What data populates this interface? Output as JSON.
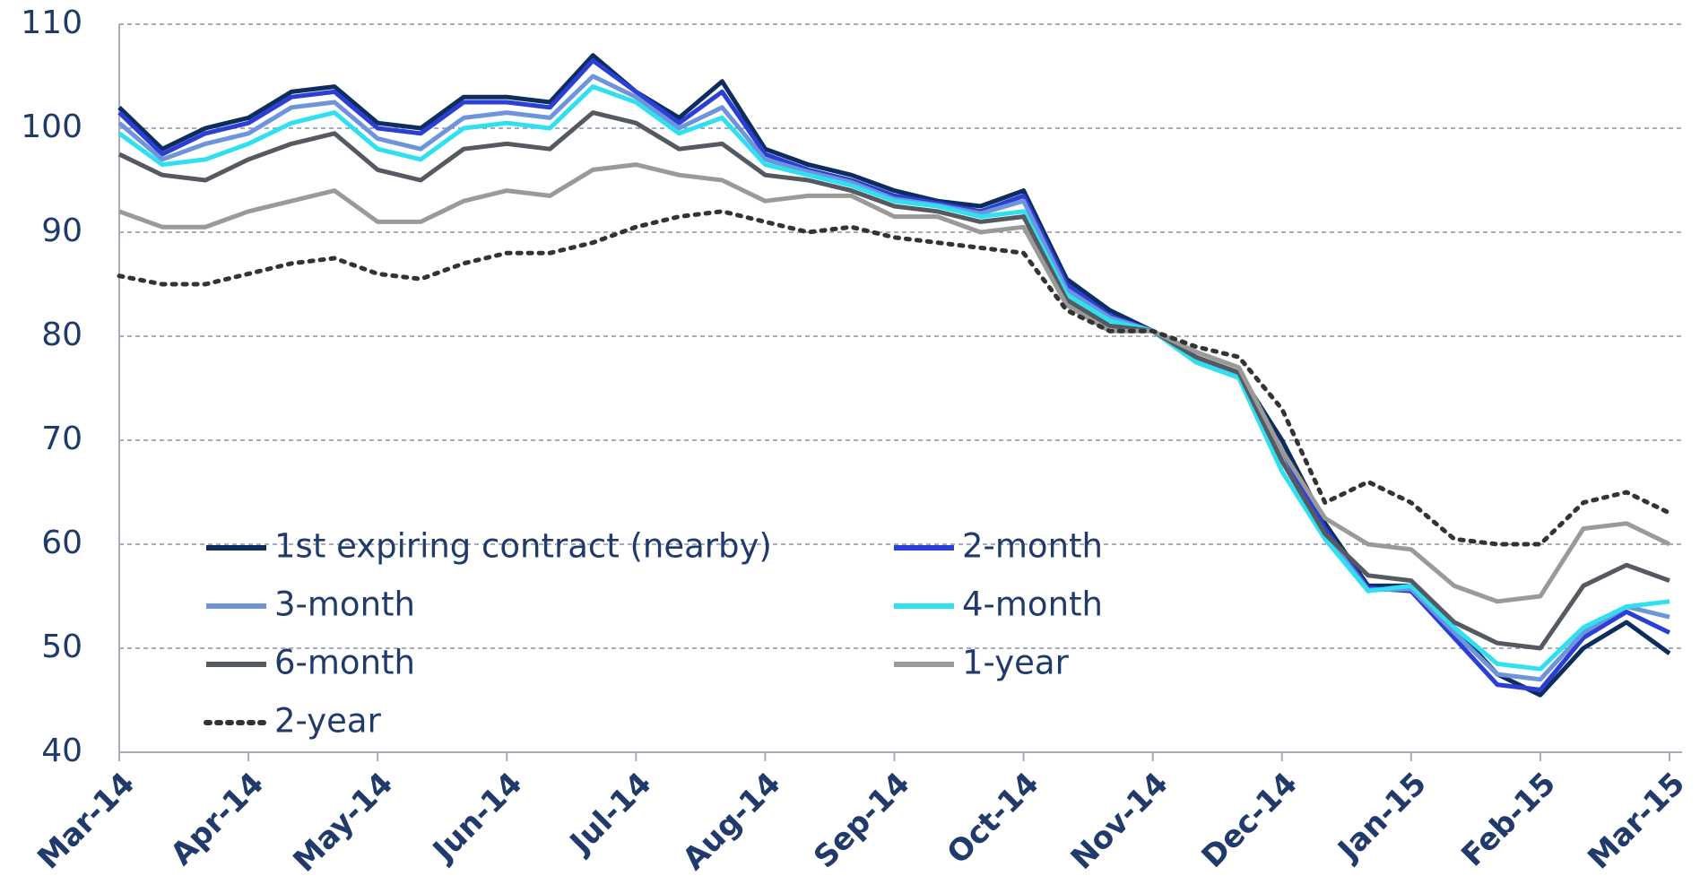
{
  "chart_data": {
    "type": "line",
    "categories": [
      "Mar-14",
      null,
      null,
      "Apr-14",
      null,
      null,
      "May-14",
      null,
      null,
      "Jun-14",
      null,
      null,
      "Jul-14",
      null,
      null,
      "Aug-14",
      null,
      null,
      "Sep-14",
      null,
      null,
      "Oct-14",
      null,
      null,
      "Nov-14",
      null,
      null,
      "Dec-14",
      null,
      null,
      "Jan-15",
      null,
      null,
      "Feb-15",
      null,
      null,
      "Mar-15"
    ],
    "ylim": [
      40,
      110
    ],
    "yticks": [
      40,
      50,
      60,
      70,
      80,
      90,
      100,
      110
    ],
    "grid": true,
    "series": [
      {
        "name": "1st expiring contract (nearby)",
        "color": "#0d2d5e",
        "dash": "solid",
        "values": [
          102,
          98,
          100,
          101,
          103.5,
          104,
          100.5,
          100,
          103,
          103,
          102.5,
          107,
          103.5,
          101,
          104.5,
          98,
          96.5,
          95.5,
          94,
          93,
          92.5,
          94,
          85.5,
          82.5,
          80.5,
          78,
          76.5,
          70,
          62,
          56,
          56,
          52,
          47.5,
          45.5,
          50,
          52.5,
          49.5
        ]
      },
      {
        "name": "2-month",
        "color": "#2b3fd6",
        "dash": "solid",
        "values": [
          101.5,
          97.5,
          99.5,
          100.5,
          103,
          103.5,
          100,
          99.5,
          102.5,
          102.5,
          102,
          106.5,
          103.5,
          100.5,
          103.5,
          97.5,
          96,
          95,
          93.5,
          92.8,
          92,
          93.5,
          85,
          82,
          80.5,
          77.8,
          76.3,
          69,
          61.5,
          55.8,
          55.5,
          51,
          46.5,
          46,
          51,
          53.5,
          51.5
        ]
      },
      {
        "name": "3-month",
        "color": "#6e95dc",
        "dash": "solid",
        "values": [
          100.5,
          97,
          98.5,
          99.5,
          102,
          102.5,
          99,
          98,
          101,
          101.5,
          101,
          105,
          103,
          100,
          102,
          97,
          95.8,
          94.8,
          93.2,
          92.6,
          91.8,
          93,
          84.5,
          81.8,
          80.5,
          77.6,
          76.2,
          68,
          61,
          55.6,
          55.7,
          51.5,
          47.5,
          47,
          51.5,
          54,
          53
        ]
      },
      {
        "name": "4-month",
        "color": "#2ee0f0",
        "dash": "solid",
        "values": [
          99.5,
          96.5,
          97,
          98.5,
          100.5,
          101.5,
          98,
          97,
          100,
          100.5,
          100,
          104,
          102.5,
          99.5,
          101,
          96.5,
          95.5,
          94.5,
          93,
          92.5,
          91.5,
          92,
          84,
          81.5,
          80.5,
          77.5,
          76,
          67,
          60.5,
          55.5,
          56,
          52,
          48.5,
          48,
          52,
          54,
          54.5
        ]
      },
      {
        "name": "6-month",
        "color": "#555a60",
        "dash": "solid",
        "values": [
          97.5,
          95.5,
          95,
          97,
          98.5,
          99.5,
          96,
          95,
          98,
          98.5,
          98,
          101.5,
          100.5,
          98,
          98.5,
          95.5,
          95,
          94,
          92.5,
          92,
          91,
          91.5,
          83.5,
          81,
          80.5,
          78,
          76.5,
          68,
          61,
          57,
          56.5,
          52.5,
          50.5,
          50,
          56,
          58,
          56.5
        ]
      },
      {
        "name": "1-year",
        "color": "#9a9a9a",
        "dash": "solid",
        "values": [
          92,
          90.5,
          90.5,
          92,
          93,
          94,
          91,
          91,
          93,
          94,
          93.5,
          96,
          96.5,
          95.5,
          95,
          93,
          93.5,
          93.5,
          91.5,
          91.5,
          90,
          90.5,
          83,
          80.5,
          80.5,
          78.5,
          77,
          69,
          62.5,
          60,
          59.5,
          56,
          54.5,
          55,
          61.5,
          62,
          60
        ]
      },
      {
        "name": "2-year",
        "color": "#333333",
        "dash": "dotted",
        "values": [
          85.8,
          85,
          85,
          86,
          87,
          87.5,
          86,
          85.5,
          87,
          88,
          88,
          89,
          90.5,
          91.5,
          92,
          91,
          90,
          90.5,
          89.5,
          89,
          88.5,
          88,
          82.5,
          80.5,
          80.5,
          79,
          78,
          73,
          64,
          66,
          64,
          60.5,
          60,
          60,
          64,
          65,
          63
        ]
      }
    ]
  }
}
